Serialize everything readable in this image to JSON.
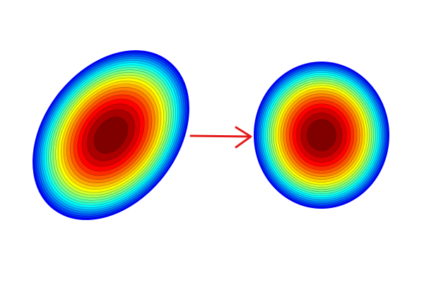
{
  "diagram": {
    "colormap": "jet",
    "background_color": "#ffffff",
    "arrow_color": "#e41b1b",
    "contour_line_color": "#000000",
    "left_shape": {
      "name": "elongated-distribution",
      "shape": "tilted ellipse",
      "contour_levels": 22
    },
    "right_shape": {
      "name": "circular-distribution",
      "shape": "near-circle",
      "contour_levels": 22
    },
    "arrow": {
      "direction": "right",
      "meaning": "transformation"
    }
  }
}
